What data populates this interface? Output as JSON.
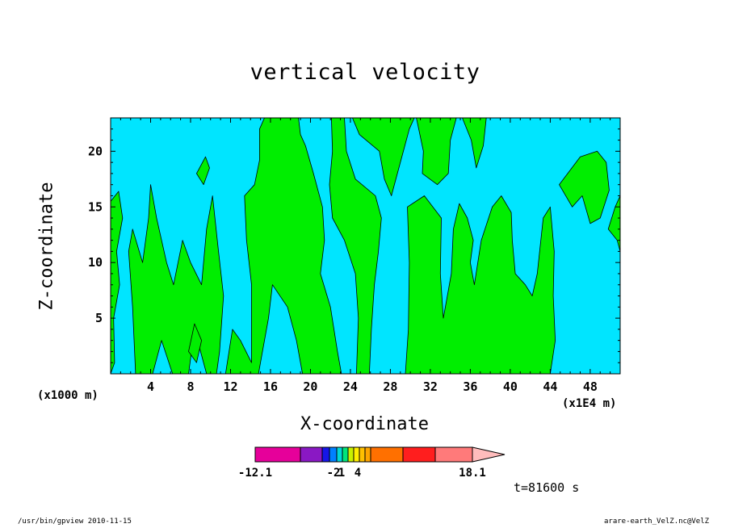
{
  "chart_data": {
    "type": "heatmap",
    "title": "vertical velocity",
    "xlabel": "X-coordinate",
    "ylabel": "Z-coordinate",
    "x_unit_left": "(x1000 m)",
    "x_unit_right": "(x1E4 m)",
    "xlim": [
      0,
      51
    ],
    "ylim": [
      0,
      23
    ],
    "x_ticks": [
      "4",
      "8",
      "12",
      "16",
      "20",
      "24",
      "28",
      "32",
      "36",
      "40",
      "44",
      "48"
    ],
    "y_ticks": [
      "5",
      "10",
      "15",
      "20"
    ],
    "fill_colors": {
      "negative": "#00e5ff",
      "positive": "#00ee00",
      "contour": "#000000"
    },
    "regions": [
      {
        "label": "positive",
        "polygon": [
          [
            0,
            15.5
          ],
          [
            0.8,
            16.4
          ],
          [
            1.2,
            14
          ],
          [
            0.6,
            11
          ],
          [
            0.9,
            8
          ],
          [
            0.3,
            5
          ],
          [
            0.4,
            1
          ],
          [
            0,
            0
          ]
        ]
      },
      {
        "label": "positive",
        "polygon": [
          [
            2.5,
            0
          ],
          [
            2.2,
            6
          ],
          [
            1.8,
            11
          ],
          [
            2.2,
            13
          ],
          [
            3.2,
            10
          ],
          [
            3.8,
            14
          ],
          [
            4.0,
            17
          ],
          [
            4.6,
            14
          ],
          [
            5.6,
            10
          ],
          [
            6.3,
            8
          ],
          [
            7.2,
            12
          ],
          [
            8.0,
            10
          ],
          [
            9.1,
            8
          ],
          [
            9.6,
            13
          ],
          [
            10.2,
            16
          ],
          [
            10.8,
            11
          ],
          [
            11.3,
            7
          ],
          [
            10.9,
            2
          ],
          [
            10.6,
            0
          ],
          [
            9.6,
            0
          ],
          [
            8.4,
            4
          ],
          [
            7.8,
            0
          ],
          [
            6.2,
            0
          ],
          [
            5.1,
            3
          ],
          [
            4.2,
            0
          ]
        ]
      },
      {
        "label": "positive",
        "polygon": [
          [
            11.5,
            0
          ],
          [
            12.2,
            4
          ],
          [
            13.0,
            3
          ],
          [
            14.1,
            1
          ],
          [
            14.1,
            8
          ],
          [
            13.6,
            12
          ],
          [
            13.4,
            16
          ],
          [
            14.4,
            17
          ],
          [
            14.9,
            19.2
          ],
          [
            14.9,
            22
          ],
          [
            15.4,
            23
          ],
          [
            18.8,
            23
          ],
          [
            19.0,
            21.5
          ],
          [
            19.5,
            20.5
          ],
          [
            20.3,
            18
          ],
          [
            21.2,
            15
          ],
          [
            21.4,
            12
          ],
          [
            21.0,
            9
          ],
          [
            22.0,
            6
          ],
          [
            22.7,
            2
          ],
          [
            23.1,
            0
          ],
          [
            19.2,
            0
          ],
          [
            18.6,
            3
          ],
          [
            17.7,
            6
          ],
          [
            16.2,
            8
          ],
          [
            15.8,
            5
          ],
          [
            15.1,
            1.5
          ],
          [
            14.8,
            0
          ]
        ]
      },
      {
        "label": "positive",
        "polygon": [
          [
            23.4,
            23
          ],
          [
            23.6,
            20
          ],
          [
            24.5,
            17.5
          ],
          [
            26.5,
            16
          ],
          [
            27.1,
            14
          ],
          [
            26.8,
            11
          ],
          [
            26.4,
            8
          ],
          [
            26.1,
            4
          ],
          [
            25.9,
            0
          ],
          [
            24.6,
            0
          ],
          [
            24.8,
            5
          ],
          [
            24.5,
            9
          ],
          [
            23.4,
            12
          ],
          [
            22.2,
            14
          ],
          [
            21.9,
            17
          ],
          [
            22.2,
            20
          ],
          [
            22.1,
            23
          ]
        ]
      },
      {
        "label": "positive",
        "polygon": [
          [
            24.2,
            23
          ],
          [
            24.9,
            21.5
          ],
          [
            26.9,
            20
          ],
          [
            27.4,
            17.5
          ],
          [
            28.1,
            16
          ],
          [
            29.0,
            19
          ],
          [
            29.9,
            22
          ],
          [
            30.4,
            23
          ]
        ]
      },
      {
        "label": "positive",
        "polygon": [
          [
            29.5,
            0
          ],
          [
            29.8,
            4
          ],
          [
            29.9,
            10
          ],
          [
            29.7,
            15
          ],
          [
            31.4,
            16
          ],
          [
            33.1,
            14
          ],
          [
            33.0,
            9
          ],
          [
            33.3,
            5
          ],
          [
            34.1,
            9
          ],
          [
            34.3,
            13
          ],
          [
            34.9,
            15.3
          ],
          [
            35.7,
            14
          ],
          [
            36.3,
            12
          ],
          [
            36.0,
            10
          ],
          [
            36.4,
            8
          ],
          [
            37.1,
            12
          ],
          [
            38.2,
            15
          ],
          [
            39.1,
            16
          ],
          [
            40.1,
            14.5
          ],
          [
            40.2,
            12
          ],
          [
            40.5,
            9
          ],
          [
            41.5,
            8
          ],
          [
            42.2,
            7
          ],
          [
            42.7,
            9
          ],
          [
            43.3,
            14
          ],
          [
            44.0,
            15
          ],
          [
            44.4,
            11
          ],
          [
            44.3,
            7
          ],
          [
            44.5,
            3
          ],
          [
            44.0,
            0
          ]
        ]
      },
      {
        "label": "positive",
        "polygon": [
          [
            30.6,
            23
          ],
          [
            31.3,
            20
          ],
          [
            31.2,
            18
          ],
          [
            32.7,
            17
          ],
          [
            33.8,
            18
          ],
          [
            34.0,
            21
          ],
          [
            34.6,
            23
          ]
        ]
      },
      {
        "label": "positive",
        "polygon": [
          [
            35.2,
            23
          ],
          [
            36.1,
            21
          ],
          [
            36.6,
            18.5
          ],
          [
            37.3,
            20.5
          ],
          [
            37.6,
            23
          ]
        ]
      },
      {
        "label": "positive",
        "polygon": [
          [
            44.9,
            17
          ],
          [
            46.2,
            15
          ],
          [
            47.2,
            16
          ],
          [
            48.0,
            13.5
          ],
          [
            49.0,
            14
          ],
          [
            49.9,
            16.5
          ],
          [
            49.6,
            19
          ],
          [
            48.7,
            20
          ],
          [
            47.0,
            19.5
          ]
        ]
      },
      {
        "label": "positive",
        "polygon": [
          [
            49.8,
            13
          ],
          [
            50.7,
            12
          ],
          [
            51,
            11
          ],
          [
            51,
            16
          ],
          [
            50.5,
            15
          ]
        ]
      },
      {
        "label": "positive",
        "polygon": [
          [
            8.6,
            18
          ],
          [
            9.3,
            17
          ],
          [
            9.9,
            18.5
          ],
          [
            9.5,
            19.5
          ]
        ]
      },
      {
        "label": "positive",
        "polygon": [
          [
            7.8,
            2
          ],
          [
            8.6,
            1
          ],
          [
            9.1,
            3
          ],
          [
            8.4,
            4.5
          ]
        ]
      }
    ],
    "colorbar": {
      "colors": [
        "#e6009a",
        "#8a18c4",
        "#1616e8",
        "#0080ff",
        "#00d8d8",
        "#00e57a",
        "#c8f000",
        "#ffee00",
        "#ffc000",
        "#ffa500",
        "#ff7000",
        "#ff1e1e",
        "#ff7a7a",
        "#ffbcbc"
      ],
      "labels": [
        "-12.1",
        "-2",
        "1",
        "4",
        "18.1"
      ]
    },
    "time_label": "t=81600 s"
  },
  "footer_left": "/usr/bin/gpview   2010-11-15",
  "footer_right": "arare-earth_VelZ.nc@VelZ"
}
